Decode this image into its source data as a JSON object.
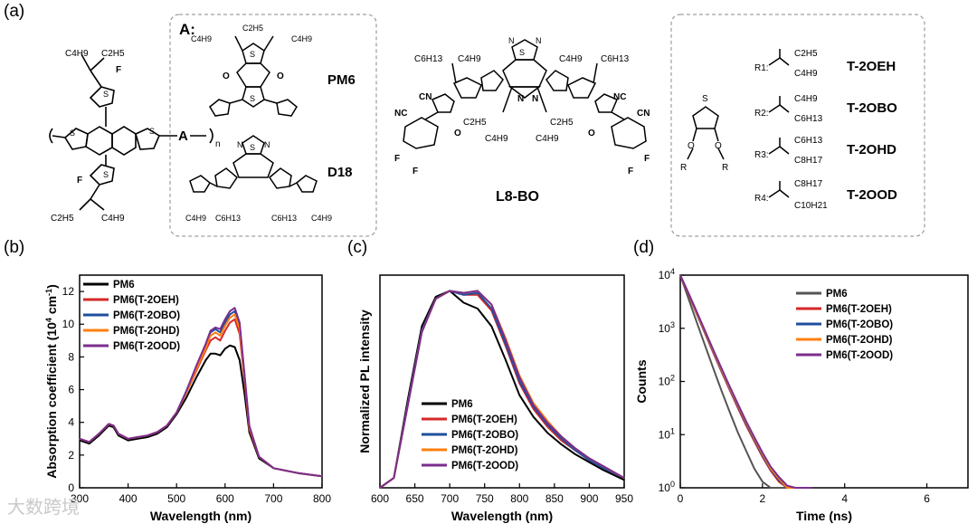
{
  "panel_labels": [
    "(a)",
    "(b)",
    "(c)",
    "(d)"
  ],
  "scheme": {
    "box_a_title": "A:",
    "pm6_label": "PM6",
    "d18_label": "D18",
    "l8bo_label": "L8-BO",
    "chain_c4h9": "C4H9",
    "chain_c2h5": "C2H5",
    "chain_c6h13": "C6H13",
    "donor_unit": "A",
    "n_subscript": "n",
    "r_labels": [
      "R1:",
      "R2:",
      "R3:",
      "R4:"
    ],
    "r_groups": [
      [
        "C2H5",
        "C4H9"
      ],
      [
        "C4H9",
        "C6H13"
      ],
      [
        "C6H13",
        "C8H17"
      ],
      [
        "C8H17",
        "C10H21"
      ]
    ],
    "r_names": [
      "T-2OEH",
      "T-2OBO",
      "T-2OHD",
      "T-2OOD"
    ],
    "r_atom": "R"
  },
  "chart_data": [
    {
      "type": "line",
      "panel": "(b)",
      "xlabel": "Wavelength (nm)",
      "ylabel": "Absorption coefficient (10",
      "ylabel_sup": "4",
      "ylabel_unit": " cm",
      "ylabel_sup2": "-1",
      "ylabel_end": ")",
      "xlim": [
        300,
        800
      ],
      "ylim": [
        0,
        13
      ],
      "xticks": [
        300,
        400,
        500,
        600,
        700,
        800
      ],
      "yticks": [
        0,
        2,
        4,
        6,
        8,
        10,
        12
      ],
      "x": [
        300,
        320,
        340,
        360,
        370,
        380,
        400,
        420,
        440,
        460,
        480,
        500,
        520,
        540,
        560,
        570,
        580,
        590,
        600,
        610,
        620,
        630,
        640,
        650,
        670,
        700,
        750,
        800
      ],
      "series": [
        {
          "name": "PM6",
          "color": "#000000",
          "values": [
            2.9,
            2.7,
            3.2,
            3.8,
            3.7,
            3.2,
            2.9,
            3.0,
            3.1,
            3.3,
            3.7,
            4.5,
            5.5,
            6.7,
            7.8,
            8.2,
            8.2,
            8.1,
            8.5,
            8.7,
            8.6,
            7.8,
            5.8,
            3.4,
            1.8,
            1.2,
            0.9,
            0.7
          ]
        },
        {
          "name": "PM6(T-2OEH)",
          "color": "#d62728",
          "values": [
            3.0,
            2.8,
            3.3,
            3.9,
            3.8,
            3.3,
            3.0,
            3.1,
            3.2,
            3.4,
            3.8,
            4.6,
            5.8,
            7.1,
            8.4,
            9.0,
            9.2,
            9.0,
            9.6,
            10.1,
            10.3,
            9.4,
            6.6,
            3.6,
            1.9,
            1.2,
            0.9,
            0.7
          ]
        },
        {
          "name": "PM6(T-2OBO)",
          "color": "#1f4e9c",
          "values": [
            3.0,
            2.8,
            3.3,
            3.9,
            3.8,
            3.3,
            3.0,
            3.1,
            3.2,
            3.4,
            3.8,
            4.6,
            5.9,
            7.3,
            8.7,
            9.5,
            9.7,
            9.5,
            10.1,
            10.6,
            10.8,
            9.9,
            6.9,
            3.7,
            1.9,
            1.2,
            0.9,
            0.7
          ]
        },
        {
          "name": "PM6(T-2OHD)",
          "color": "#ff7f0e",
          "values": [
            3.0,
            2.8,
            3.3,
            3.9,
            3.8,
            3.3,
            3.0,
            3.1,
            3.2,
            3.4,
            3.8,
            4.6,
            5.8,
            7.2,
            8.5,
            9.3,
            9.5,
            9.3,
            9.9,
            10.4,
            10.6,
            9.7,
            6.8,
            3.7,
            1.9,
            1.2,
            0.9,
            0.7
          ]
        },
        {
          "name": "PM6(T-2OOD)",
          "color": "#7b2d8e",
          "values": [
            3.0,
            2.8,
            3.3,
            3.9,
            3.8,
            3.3,
            3.0,
            3.1,
            3.2,
            3.4,
            3.8,
            4.6,
            5.9,
            7.4,
            8.8,
            9.6,
            9.8,
            9.7,
            10.3,
            10.8,
            11.0,
            10.1,
            7.0,
            3.8,
            1.9,
            1.2,
            0.9,
            0.7
          ]
        }
      ]
    },
    {
      "type": "line",
      "panel": "(c)",
      "xlabel": "Wavelength (nm)",
      "ylabel": "Normalized PL intensity",
      "xlim": [
        600,
        950
      ],
      "ylim": [
        0,
        1.08
      ],
      "xticks": [
        600,
        650,
        700,
        750,
        800,
        850,
        900,
        950
      ],
      "x": [
        600,
        620,
        640,
        660,
        680,
        700,
        720,
        740,
        760,
        780,
        800,
        820,
        840,
        860,
        880,
        900,
        920,
        950
      ],
      "series": [
        {
          "name": "PM6",
          "color": "#000000",
          "values": [
            0.0,
            0.05,
            0.45,
            0.82,
            0.97,
            1.0,
            0.94,
            0.91,
            0.82,
            0.65,
            0.47,
            0.36,
            0.28,
            0.22,
            0.17,
            0.13,
            0.09,
            0.04
          ]
        },
        {
          "name": "PM6(T-2OEH)",
          "color": "#d62728",
          "values": [
            0.0,
            0.05,
            0.43,
            0.8,
            0.96,
            1.0,
            0.98,
            0.98,
            0.9,
            0.72,
            0.53,
            0.4,
            0.31,
            0.24,
            0.19,
            0.14,
            0.1,
            0.05
          ]
        },
        {
          "name": "PM6(T-2OBO)",
          "color": "#1f4e9c",
          "values": [
            0.0,
            0.05,
            0.43,
            0.8,
            0.96,
            1.0,
            0.98,
            0.99,
            0.91,
            0.73,
            0.54,
            0.41,
            0.32,
            0.25,
            0.19,
            0.14,
            0.1,
            0.05
          ]
        },
        {
          "name": "PM6(T-2OHD)",
          "color": "#ff7f0e",
          "values": [
            0.0,
            0.05,
            0.42,
            0.79,
            0.96,
            1.0,
            0.99,
            1.0,
            0.93,
            0.76,
            0.57,
            0.43,
            0.34,
            0.26,
            0.2,
            0.15,
            0.11,
            0.05
          ]
        },
        {
          "name": "PM6(T-2OOD)",
          "color": "#7b2d8e",
          "values": [
            0.0,
            0.05,
            0.42,
            0.79,
            0.96,
            1.0,
            0.99,
            1.0,
            0.93,
            0.75,
            0.56,
            0.42,
            0.33,
            0.26,
            0.2,
            0.15,
            0.11,
            0.05
          ]
        }
      ]
    },
    {
      "type": "line",
      "panel": "(d)",
      "xlabel": "Time (ns)",
      "ylabel": "Counts",
      "yscale": "log",
      "xlim": [
        0,
        7
      ],
      "ylim": [
        1,
        10000
      ],
      "xticks": [
        0,
        2,
        4,
        6
      ],
      "yticks": [
        1,
        10,
        100,
        1000,
        10000
      ],
      "ytick_labels": [
        "10^0",
        "10^1",
        "10^2",
        "10^3",
        "10^4"
      ],
      "x": [
        0,
        0.2,
        0.4,
        0.6,
        0.8,
        1.0,
        1.2,
        1.4,
        1.6,
        1.8,
        2.0,
        2.2,
        2.4,
        2.6,
        2.8,
        3.0,
        3.2
      ],
      "series": [
        {
          "name": "PM6",
          "color": "#555555",
          "values": [
            10000,
            3600,
            1300,
            480,
            180,
            68,
            27,
            11,
            5,
            2.3,
            1.3,
            1.0,
            1.0,
            1.0,
            1.0,
            1.0,
            1.0
          ]
        },
        {
          "name": "PM6(T-2OEH)",
          "color": "#d62728",
          "values": [
            10000,
            4300,
            1850,
            800,
            350,
            155,
            70,
            32,
            15,
            7.5,
            3.8,
            2.1,
            1.3,
            1.0,
            1.0,
            1.0,
            1.0
          ]
        },
        {
          "name": "PM6(T-2OBO)",
          "color": "#1f4e9c",
          "values": [
            10000,
            4400,
            1900,
            830,
            365,
            162,
            73,
            34,
            16,
            8,
            4,
            2.2,
            1.4,
            1.0,
            1.0,
            1.0,
            1.0
          ]
        },
        {
          "name": "PM6(T-2OHD)",
          "color": "#ff7f0e",
          "values": [
            10000,
            4500,
            1950,
            860,
            380,
            170,
            77,
            36,
            17,
            8.5,
            4.3,
            2.3,
            1.5,
            1.0,
            1.0,
            1.0,
            1.0
          ]
        },
        {
          "name": "PM6(T-2OOD)",
          "color": "#7b2d8e",
          "values": [
            10000,
            4600,
            2050,
            900,
            400,
            180,
            82,
            38,
            18,
            9,
            4.6,
            2.5,
            1.6,
            1.1,
            1.0,
            1.0,
            1.0
          ]
        }
      ]
    }
  ],
  "watermark": "大数跨境"
}
